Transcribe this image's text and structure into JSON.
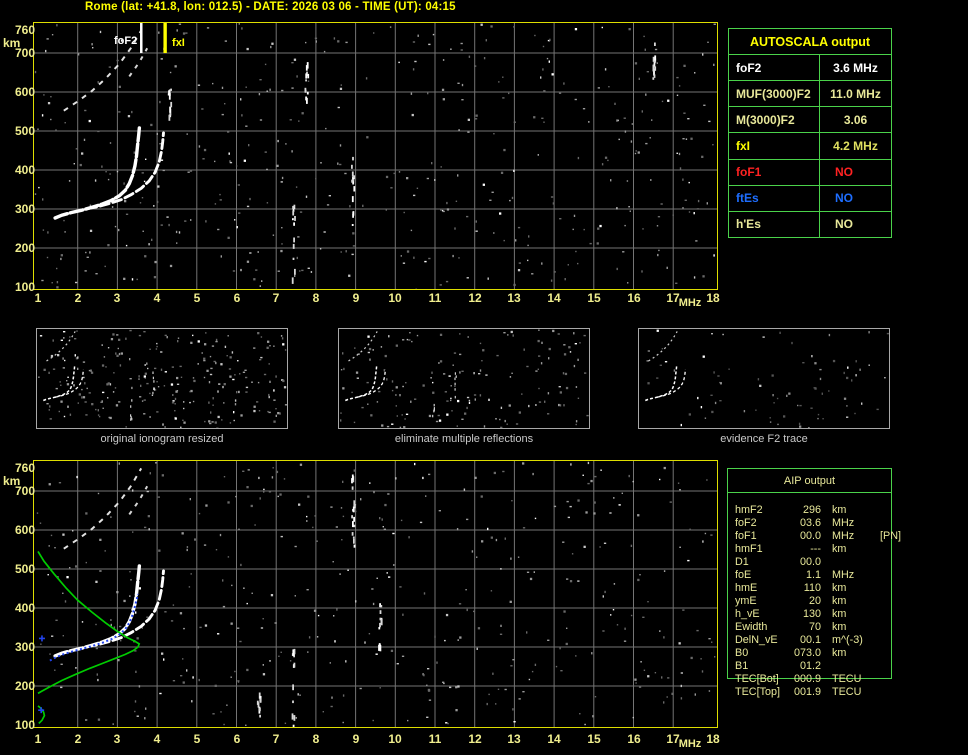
{
  "title": "Rome (lat: +41.8, lon: 012.5) - DATE: 2026 03 06 - TIME (UT): 04:15",
  "colors": {
    "background": "#000000",
    "title": "#ffff00",
    "axis_label": "#f0ee8e",
    "plot_border": "#dede00",
    "grid": "#747474",
    "table_border": "#4ad24a",
    "trace_white": "#ffffff",
    "profile_green": "#00cc00",
    "restored_blue": "#2244ee",
    "thumb_border": "#a8a8a8",
    "thumb_caption": "#c9c9c9",
    "aip_text": "#e8e89a"
  },
  "ionogram": {
    "x_unit": "MHz",
    "y_unit": "km",
    "x_ticks": [
      1,
      2,
      3,
      4,
      5,
      6,
      7,
      8,
      9,
      10,
      11,
      12,
      13,
      14,
      15,
      16,
      17,
      18
    ],
    "y_ticks": [
      760,
      700,
      600,
      500,
      400,
      300,
      200,
      100
    ],
    "markers": {
      "foF2": {
        "label": "foF2",
        "mhz": 3.6
      },
      "fxI": {
        "label": "fxI",
        "mhz": 4.2
      }
    }
  },
  "autoscala": {
    "header": "AUTOSCALA output",
    "rows": [
      {
        "label": "foF2",
        "value": "3.6 MHz",
        "labelColor": "#ffffff",
        "valueColor": "#ffffff"
      },
      {
        "label": "MUF(3000)F2",
        "value": "11.0 MHz",
        "labelColor": "#e8e89a",
        "valueColor": "#e8e89a"
      },
      {
        "label": "M(3000)F2",
        "value": "3.06",
        "labelColor": "#e8e89a",
        "valueColor": "#e8e89a"
      },
      {
        "label": "fxI",
        "value": "4.2 MHz",
        "labelColor": "#ffff00",
        "valueColor": "#e0e060"
      },
      {
        "label": "foF1",
        "value": "NO",
        "labelColor": "#ff2222",
        "valueColor": "#ff2222"
      },
      {
        "label": "ftEs",
        "value": "NO",
        "labelColor": "#1e6eff",
        "valueColor": "#1e6eff"
      },
      {
        "label": "h'Es",
        "value": "NO",
        "labelColor": "#e8e89a",
        "valueColor": "#e8e89a"
      }
    ]
  },
  "thumbnails": [
    {
      "caption": "original ionogram resized",
      "noise": 260
    },
    {
      "caption": "eliminate multiple reflections",
      "noise": 165
    },
    {
      "caption": "evidence F2 trace",
      "noise": 80
    }
  ],
  "aip": {
    "header": "AIP output",
    "rows": [
      {
        "label": "hmF2",
        "value": "296",
        "unit": "km",
        "note": ""
      },
      {
        "label": "foF2",
        "value": "03.6",
        "unit": "MHz",
        "note": ""
      },
      {
        "label": "foF1",
        "value": "00.0",
        "unit": "MHz",
        "note": "[PN]"
      },
      {
        "label": "hmF1",
        "value": "---",
        "unit": "km",
        "note": ""
      },
      {
        "label": "D1",
        "value": "00.0",
        "unit": "",
        "note": ""
      },
      {
        "label": "foE",
        "value": "1.1",
        "unit": "MHz",
        "note": ""
      },
      {
        "label": "hmE",
        "value": "110",
        "unit": "km",
        "note": ""
      },
      {
        "label": "ymE",
        "value": "20",
        "unit": "km",
        "note": ""
      },
      {
        "label": "h_vE",
        "value": "130",
        "unit": "km",
        "note": ""
      },
      {
        "label": "Ewidth",
        "value": "70",
        "unit": "km",
        "note": ""
      },
      {
        "label": "DelN_vE",
        "value": "00.1",
        "unit": "m^(-3)",
        "note": ""
      },
      {
        "label": "B0",
        "value": "073.0",
        "unit": "km",
        "note": ""
      },
      {
        "label": "B1",
        "value": "01.2",
        "unit": "",
        "note": ""
      },
      {
        "label": "TEC[Bot]",
        "value": "000.9",
        "unit": "TECU",
        "note": ""
      },
      {
        "label": "TEC[Top]",
        "value": "001.9",
        "unit": "TECU",
        "note": ""
      }
    ]
  },
  "chart_data": {
    "type": "scatter",
    "xlabel": "MHz",
    "ylabel": "km",
    "xlim": [
      1,
      18
    ],
    "ylim": [
      100,
      760
    ],
    "grid": true,
    "o_trace": [
      [
        1.43,
        277
      ],
      [
        1.6,
        284
      ],
      [
        1.85,
        291
      ],
      [
        2.1,
        297
      ],
      [
        2.35,
        304
      ],
      [
        2.6,
        312
      ],
      [
        2.85,
        322
      ],
      [
        3.05,
        334
      ],
      [
        3.2,
        348
      ],
      [
        3.3,
        365
      ],
      [
        3.38,
        386
      ],
      [
        3.44,
        410
      ],
      [
        3.48,
        436
      ],
      [
        3.51,
        464
      ],
      [
        3.54,
        492
      ],
      [
        3.56,
        515
      ]
    ],
    "x_trace": [
      [
        2.25,
        301
      ],
      [
        2.5,
        306
      ],
      [
        2.8,
        314
      ],
      [
        3.1,
        324
      ],
      [
        3.35,
        337
      ],
      [
        3.6,
        353
      ],
      [
        3.8,
        372
      ],
      [
        3.95,
        394
      ],
      [
        4.05,
        420
      ],
      [
        4.11,
        448
      ],
      [
        4.14,
        472
      ],
      [
        4.16,
        495
      ]
    ],
    "echo1": [
      [
        1.65,
        552
      ],
      [
        2.0,
        576
      ],
      [
        2.35,
        602
      ],
      [
        2.7,
        634
      ],
      [
        3.05,
        672
      ],
      [
        3.35,
        714
      ],
      [
        3.6,
        758
      ]
    ],
    "echo2": [
      [
        3.3,
        640
      ],
      [
        3.55,
        676
      ],
      [
        3.75,
        712
      ]
    ],
    "profile_green": [
      [
        1.0,
        545
      ],
      [
        1.15,
        520
      ],
      [
        1.4,
        488
      ],
      [
        1.7,
        452
      ],
      [
        2.0,
        420
      ],
      [
        2.35,
        390
      ],
      [
        2.7,
        362
      ],
      [
        3.0,
        340
      ],
      [
        3.25,
        324
      ],
      [
        3.45,
        314
      ],
      [
        3.55,
        308
      ],
      [
        3.52,
        300
      ],
      [
        3.4,
        291
      ],
      [
        3.2,
        281
      ],
      [
        2.95,
        271
      ],
      [
        2.65,
        259
      ],
      [
        2.3,
        245
      ],
      [
        1.95,
        230
      ],
      [
        1.6,
        214
      ],
      [
        1.3,
        198
      ],
      [
        1.08,
        186
      ],
      [
        1.0,
        181
      ]
    ],
    "profile_e_bump": [
      [
        1.0,
        149
      ],
      [
        1.07,
        143
      ],
      [
        1.14,
        133
      ],
      [
        1.16,
        124
      ],
      [
        1.1,
        112
      ],
      [
        1.02,
        104
      ]
    ],
    "restored_blue": [
      [
        1.3,
        265
      ],
      [
        1.42,
        272
      ],
      [
        1.6,
        280
      ],
      [
        1.85,
        288
      ],
      [
        2.1,
        295
      ],
      [
        2.35,
        302
      ],
      [
        2.6,
        310
      ],
      [
        2.85,
        320
      ],
      [
        3.05,
        332
      ],
      [
        3.2,
        346
      ],
      [
        3.3,
        362
      ],
      [
        3.38,
        382
      ],
      [
        3.44,
        404
      ],
      [
        3.49,
        424
      ],
      [
        3.52,
        436
      ]
    ],
    "blue_marks": [
      [
        1.1,
        322
      ],
      [
        1.08,
        138
      ]
    ],
    "interference_top": [
      [
        7.42,
        110,
        320
      ],
      [
        8.92,
        260,
        440
      ],
      [
        7.75,
        580,
        690
      ],
      [
        16.5,
        630,
        745
      ],
      [
        4.3,
        540,
        610
      ]
    ],
    "interference_bottom": [
      [
        7.42,
        100,
        300
      ],
      [
        8.92,
        540,
        750
      ],
      [
        6.55,
        120,
        185
      ],
      [
        9.6,
        300,
        420
      ]
    ]
  }
}
